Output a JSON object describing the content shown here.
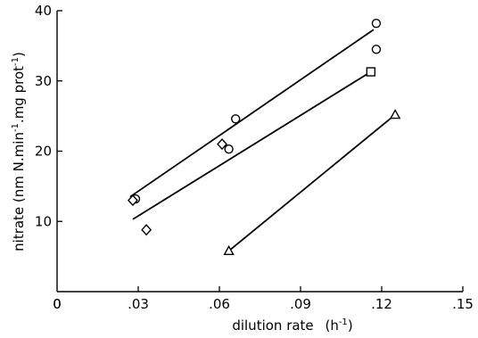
{
  "chart_data": {
    "type": "scatter",
    "title": "",
    "xlabel_main": "dilution rate",
    "xlabel_unit": "h",
    "xlabel_exp": "-1",
    "ylabel_main": "nitrate (nm N.min",
    "ylabel_exp1": "-1",
    "ylabel_mid": ".mg prot",
    "ylabel_exp2": "-1",
    "xlim": [
      0,
      0.15
    ],
    "ylim": [
      0,
      40
    ],
    "grid": false,
    "x_ticks": [
      {
        "value": 0,
        "label": "0"
      },
      {
        "value": 0.03,
        "label": ".03"
      },
      {
        "value": 0.06,
        "label": ".06"
      },
      {
        "value": 0.09,
        "label": ".09"
      },
      {
        "value": 0.12,
        "label": ".12"
      },
      {
        "value": 0.15,
        "label": ".15"
      }
    ],
    "y_ticks": [
      {
        "value": 10,
        "label": "10"
      },
      {
        "value": 20,
        "label": "20"
      },
      {
        "value": 30,
        "label": "30"
      },
      {
        "value": 40,
        "label": "40"
      }
    ],
    "y_zero_label": "0",
    "series": [
      {
        "marker": "circle",
        "points": [
          {
            "x": 0.029,
            "y": 13.2
          },
          {
            "x": 0.0635,
            "y": 20.3
          },
          {
            "x": 0.066,
            "y": 24.6
          },
          {
            "x": 0.118,
            "y": 38.2
          },
          {
            "x": 0.118,
            "y": 34.5
          }
        ],
        "fit": [
          {
            "x": 0.027,
            "y": 13.5
          },
          {
            "x": 0.117,
            "y": 37.3
          }
        ]
      },
      {
        "marker": "square",
        "points": [
          {
            "x": 0.116,
            "y": 31.3
          }
        ],
        "fit": [
          {
            "x": 0.028,
            "y": 10.3
          },
          {
            "x": 0.116,
            "y": 31.3
          }
        ]
      },
      {
        "marker": "diamond",
        "points": [
          {
            "x": 0.028,
            "y": 13.0
          },
          {
            "x": 0.033,
            "y": 8.8
          },
          {
            "x": 0.061,
            "y": 21.0
          }
        ],
        "fit": null
      },
      {
        "marker": "triangle",
        "points": [
          {
            "x": 0.0635,
            "y": 5.8
          },
          {
            "x": 0.125,
            "y": 25.2
          }
        ],
        "fit": [
          {
            "x": 0.0635,
            "y": 5.8
          },
          {
            "x": 0.125,
            "y": 25.2
          }
        ]
      }
    ]
  }
}
